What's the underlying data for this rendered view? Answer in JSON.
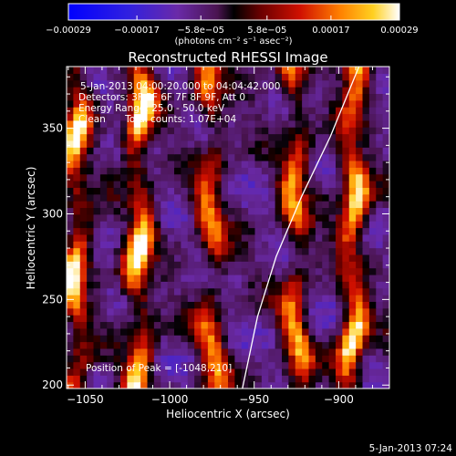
{
  "chart_data": {
    "type": "heatmap",
    "title": "Reconstructed RHESSI Image",
    "xlabel": "Heliocentric X (arcsec)",
    "ylabel": "Heliocentric Y (arcsec)",
    "xlim": [
      -1061,
      -870
    ],
    "ylim": [
      198,
      386
    ],
    "x_ticks": [
      -1050,
      -1000,
      -950,
      -900
    ],
    "y_ticks": [
      200,
      250,
      300,
      350
    ],
    "x_tick_labels": [
      "−1050",
      "−1000",
      "−950",
      "−900"
    ],
    "y_tick_labels": [
      "200",
      "250",
      "300",
      "350"
    ],
    "colorbar": {
      "range": [
        -0.00029,
        0.00029
      ],
      "ticks": [
        -0.00029,
        -0.00017,
        -5.8e-05,
        5.8e-05,
        0.00017,
        0.00029
      ],
      "tick_labels": [
        "−0.00029",
        "−0.00017",
        "−5.8e−05",
        "5.8e−05",
        "0.00017",
        "0.00029"
      ],
      "units_label": "(photons cm⁻² s⁻¹ asec⁻²)"
    },
    "annotations": [
      "5-Jan-2013 04:00:20.000 to 04:04:42.000",
      "Detectors: 3F 5F 6F 7F 8F 9F, Att 0",
      "Energy Range: 25.0 - 50.0 keV",
      "Clean",
      "Total counts: 1.07E+04"
    ],
    "peak_label": "Position of Peak = [-1048,210]",
    "peak_position": [
      -1048,
      210
    ],
    "limb_curve": [
      [
        -957,
        198
      ],
      [
        -948,
        240
      ],
      [
        -937,
        275
      ],
      [
        -922,
        310
      ],
      [
        -905,
        345
      ],
      [
        -888,
        386
      ]
    ],
    "bright_ridges": [
      {
        "x": -1055,
        "y_range": [
          200,
          386
        ],
        "strength": 0.9
      },
      {
        "x": -1018,
        "y_range": [
          200,
          386
        ],
        "strength": 1.0
      },
      {
        "x": -975,
        "y_range": [
          200,
          386
        ],
        "strength": 0.7
      },
      {
        "x": -925,
        "y_range": [
          200,
          386
        ],
        "strength": 0.75
      },
      {
        "x": -892,
        "y_range": [
          200,
          386
        ],
        "strength": 1.0
      }
    ]
  },
  "footer": {
    "timestamp": "5-Jan-2013 07:24"
  }
}
